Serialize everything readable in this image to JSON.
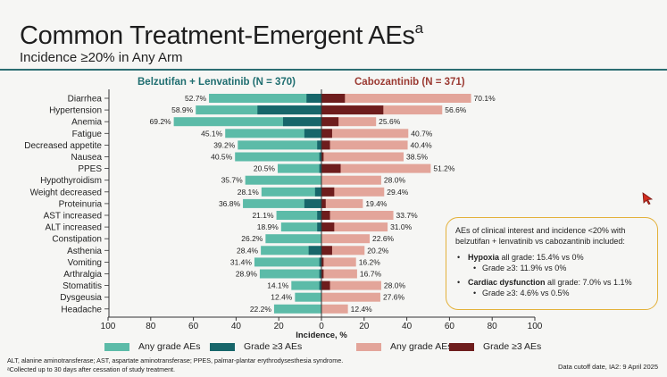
{
  "header": {
    "title": "Common Treatment-Emergent AEs",
    "title_superscript": "a",
    "subtitle": "Incidence ≥20% in Any Arm"
  },
  "arms": {
    "left": "Belzutifan + Lenvatinib (N = 370)",
    "right": "Cabozantinib (N = 371)"
  },
  "colors": {
    "accent_rule": "#2b6d72",
    "left_any": "#5cbba8",
    "left_g3": "#17666a",
    "right_any": "#e3a59a",
    "right_g3": "#6e1d1d",
    "box_border": "#e3b13a"
  },
  "chart_data": {
    "type": "bar",
    "orientation": "horizontal-butterfly",
    "categories": [
      "Diarrhea",
      "Hypertension",
      "Anemia",
      "Fatigue",
      "Decreased appetite",
      "Nausea",
      "PPES",
      "Hypothyroidism",
      "Weight decreased",
      "Proteinuria",
      "AST increased",
      "ALT increased",
      "Constipation",
      "Asthenia",
      "Vomiting",
      "Arthralgia",
      "Stomatitis",
      "Dysgeusia",
      "Headache"
    ],
    "series": [
      {
        "name": "Belzutifan + Lenvatinib - Any grade AEs",
        "side": "left",
        "values": [
          52.7,
          58.9,
          69.2,
          45.1,
          39.2,
          40.5,
          20.5,
          35.7,
          28.1,
          36.8,
          21.1,
          18.9,
          26.2,
          28.4,
          31.4,
          28.9,
          14.1,
          12.4,
          22.2
        ]
      },
      {
        "name": "Belzutifan + Lenvatinib - Grade ≥3 AEs",
        "side": "left",
        "values": [
          7,
          30,
          18,
          8,
          2,
          1,
          1,
          0,
          3,
          8,
          2,
          2,
          0,
          6,
          1,
          1,
          1,
          0,
          0
        ]
      },
      {
        "name": "Cabozantinib - Any grade AEs",
        "side": "right",
        "values": [
          70.1,
          56.6,
          25.6,
          40.7,
          40.4,
          38.5,
          51.2,
          28.0,
          29.4,
          19.4,
          33.7,
          31.0,
          22.6,
          20.2,
          16.2,
          16.7,
          28.0,
          27.6,
          12.4
        ]
      },
      {
        "name": "Cabozantinib - Grade ≥3 AEs",
        "side": "right",
        "values": [
          11,
          29,
          8,
          5,
          4,
          1,
          9,
          0,
          6,
          2,
          4,
          6,
          0,
          5,
          1,
          1,
          4,
          0,
          0
        ]
      }
    ],
    "left_labels": [
      "52.7%",
      "58.9%",
      "69.2%",
      "45.1%",
      "39.2%",
      "40.5%",
      "20.5%",
      "35.7%",
      "28.1%",
      "36.8%",
      "21.1%",
      "18.9%",
      "26.2%",
      "28.4%",
      "31.4%",
      "28.9%",
      "14.1%",
      "12.4%",
      "22.2%"
    ],
    "right_labels": [
      "70.1%",
      "56.6%",
      "25.6%",
      "40.7%",
      "40.4%",
      "38.5%",
      "51.2%",
      "28.0%",
      "29.4%",
      "19.4%",
      "33.7%",
      "31.0%",
      "22.6%",
      "20.2%",
      "16.2%",
      "16.7%",
      "28.0%",
      "27.6%",
      "12.4%"
    ],
    "xticks": [
      100,
      80,
      60,
      40,
      20,
      0,
      20,
      40,
      60,
      80,
      100
    ],
    "xlim": [
      -100,
      100
    ],
    "xlabel": "Incidence, %",
    "legend": [
      "Any grade AEs",
      "Grade ≥3 AEs",
      "Any grade AEs",
      "Grade ≥3 AEs"
    ]
  },
  "callout": {
    "intro": "AEs of clinical interest and incidence <20% with belzutifan + lenvatinib vs cabozantinib included:",
    "items": [
      {
        "name": "Hypoxia",
        "lead": " all grade: 15.4% vs 0%",
        "sub": "Grade ≥3: 11.9% vs 0%"
      },
      {
        "name": "Cardiac dysfunction",
        "lead": " all grade: 7.0% vs 1.1%",
        "sub": "Grade ≥3: 4.6% vs 0.5%"
      }
    ]
  },
  "footnotes": {
    "abbrev": "ALT, alanine aminotransferase; AST, aspartate aminotransferase; PPES, palmar-plantar erythrodysesthesia syndrome.",
    "note_a": "ᵃCollected up to 30 days after cessation of study treatment.",
    "cutoff": "Data cutoff date, IA2: 9 April 2025"
  }
}
